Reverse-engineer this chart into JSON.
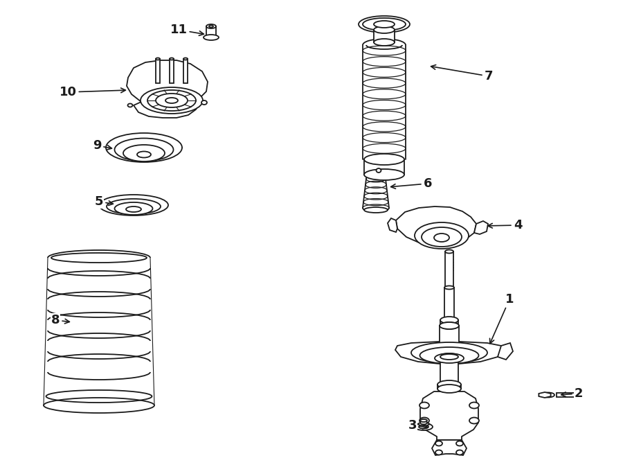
{
  "bg_color": "#ffffff",
  "line_color": "#1a1a1a",
  "fig_width": 9.0,
  "fig_height": 6.61,
  "dpi": 100,
  "label_fontsize": 13,
  "lw": 1.3
}
